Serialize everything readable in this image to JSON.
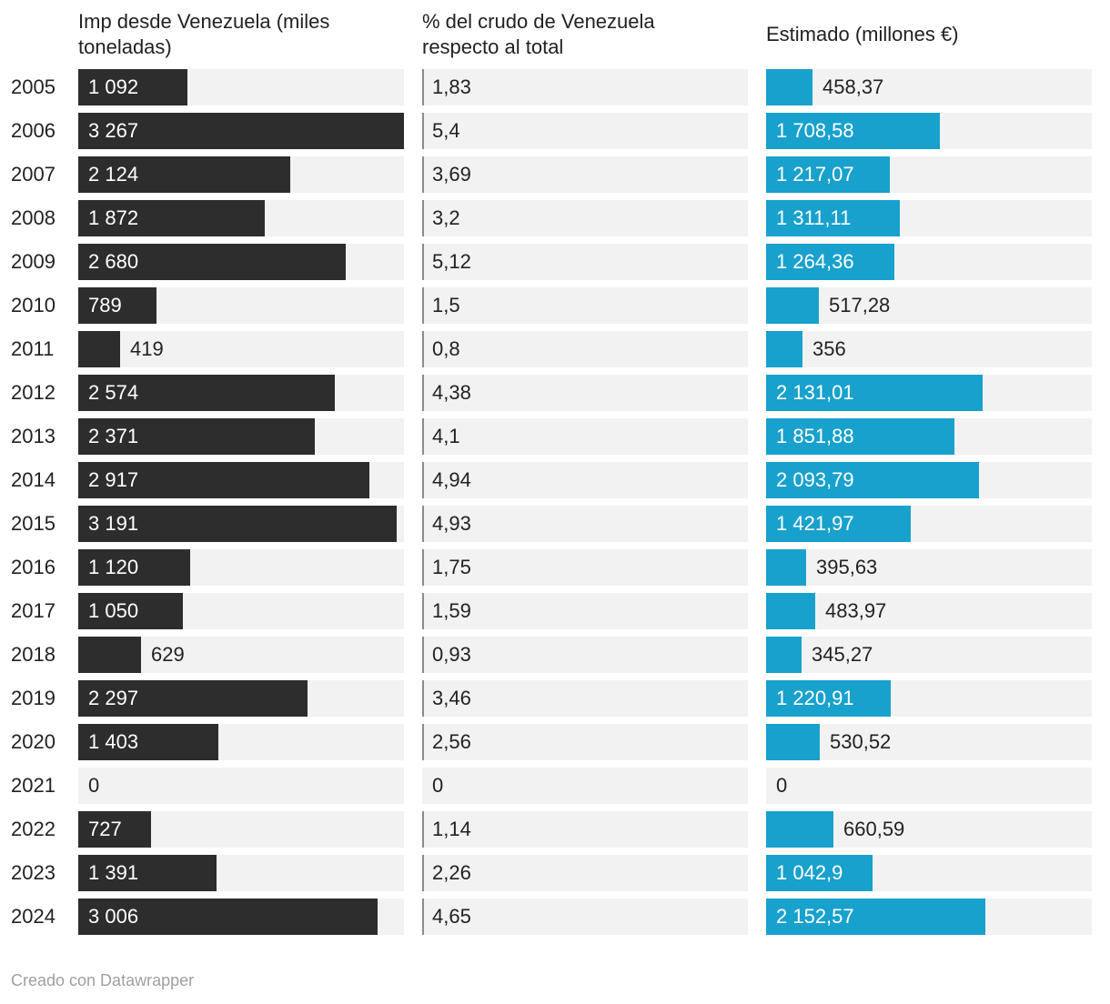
{
  "chart_data": {
    "type": "table",
    "columns": [
      {
        "key": "imp",
        "title": "Imp desde Venezuela (miles toneladas)",
        "kind": "bar",
        "max": 3267,
        "color": "#2d2d2d"
      },
      {
        "key": "pct",
        "title": "% del crudo de Venezuela respecto al total",
        "kind": "text"
      },
      {
        "key": "est",
        "title": "Estimado (millones €)",
        "kind": "bar",
        "max": 3200,
        "color": "#18a1cd"
      }
    ],
    "rows": [
      {
        "year": "2005",
        "imp": 1092,
        "imp_label": "1 092",
        "pct": "1,83",
        "est": 458.37,
        "est_label": "458,37"
      },
      {
        "year": "2006",
        "imp": 3267,
        "imp_label": "3 267",
        "pct": "5,4",
        "est": 1708.58,
        "est_label": "1 708,58"
      },
      {
        "year": "2007",
        "imp": 2124,
        "imp_label": "2 124",
        "pct": "3,69",
        "est": 1217.07,
        "est_label": "1 217,07"
      },
      {
        "year": "2008",
        "imp": 1872,
        "imp_label": "1 872",
        "pct": "3,2",
        "est": 1311.11,
        "est_label": "1 311,11"
      },
      {
        "year": "2009",
        "imp": 2680,
        "imp_label": "2 680",
        "pct": "5,12",
        "est": 1264.36,
        "est_label": "1 264,36"
      },
      {
        "year": "2010",
        "imp": 789,
        "imp_label": "789",
        "pct": "1,5",
        "est": 517.28,
        "est_label": "517,28"
      },
      {
        "year": "2011",
        "imp": 419,
        "imp_label": "419",
        "pct": "0,8",
        "est": 356,
        "est_label": "356"
      },
      {
        "year": "2012",
        "imp": 2574,
        "imp_label": "2 574",
        "pct": "4,38",
        "est": 2131.01,
        "est_label": "2 131,01"
      },
      {
        "year": "2013",
        "imp": 2371,
        "imp_label": "2 371",
        "pct": "4,1",
        "est": 1851.88,
        "est_label": "1 851,88"
      },
      {
        "year": "2014",
        "imp": 2917,
        "imp_label": "2 917",
        "pct": "4,94",
        "est": 2093.79,
        "est_label": "2 093,79"
      },
      {
        "year": "2015",
        "imp": 3191,
        "imp_label": "3 191",
        "pct": "4,93",
        "est": 1421.97,
        "est_label": "1 421,97"
      },
      {
        "year": "2016",
        "imp": 1120,
        "imp_label": "1 120",
        "pct": "1,75",
        "est": 395.63,
        "est_label": "395,63"
      },
      {
        "year": "2017",
        "imp": 1050,
        "imp_label": "1 050",
        "pct": "1,59",
        "est": 483.97,
        "est_label": "483,97"
      },
      {
        "year": "2018",
        "imp": 629,
        "imp_label": "629",
        "pct": "0,93",
        "est": 345.27,
        "est_label": "345,27"
      },
      {
        "year": "2019",
        "imp": 2297,
        "imp_label": "2 297",
        "pct": "3,46",
        "est": 1220.91,
        "est_label": "1 220,91"
      },
      {
        "year": "2020",
        "imp": 1403,
        "imp_label": "1 403",
        "pct": "2,56",
        "est": 530.52,
        "est_label": "530,52"
      },
      {
        "year": "2021",
        "imp": 0,
        "imp_label": "0",
        "pct": "0",
        "est": 0,
        "est_label": "0"
      },
      {
        "year": "2022",
        "imp": 727,
        "imp_label": "727",
        "pct": "1,14",
        "est": 660.59,
        "est_label": "660,59"
      },
      {
        "year": "2023",
        "imp": 1391,
        "imp_label": "1 391",
        "pct": "2,26",
        "est": 1042.9,
        "est_label": "1 042,9"
      },
      {
        "year": "2024",
        "imp": 3006,
        "imp_label": "3 006",
        "pct": "4,65",
        "est": 2152.57,
        "est_label": "2 152,57"
      }
    ]
  },
  "headers": {
    "imp_line1": "Imp desde Venezuela (miles",
    "imp_line2": "toneladas)",
    "pct_line1": "% del crudo de Venezuela",
    "pct_line2": "respecto al total",
    "est": "Estimado (millones €)"
  },
  "footer": "Creado con Datawrapper"
}
